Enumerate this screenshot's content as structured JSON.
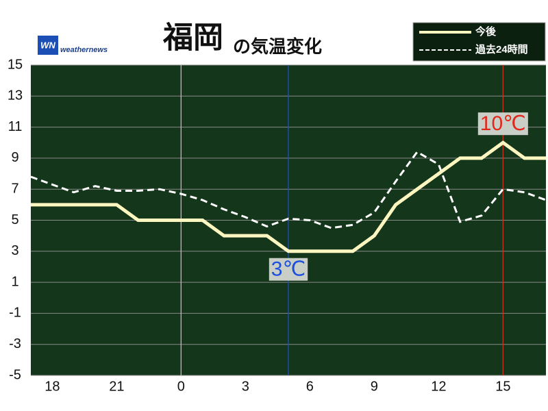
{
  "chart_data": {
    "type": "line",
    "title": "福岡",
    "subtitle": "の気温変化",
    "brand": "weathernews",
    "brand_logo": "WN",
    "x": [
      17,
      18,
      19,
      20,
      21,
      22,
      23,
      24,
      25,
      26,
      27,
      28,
      29,
      30,
      31,
      32,
      33,
      34,
      35,
      36,
      37,
      38,
      39,
      40,
      41
    ],
    "xlim": [
      17,
      41
    ],
    "xticks": [
      {
        "value": 18,
        "label": "18"
      },
      {
        "value": 21,
        "label": "21"
      },
      {
        "value": 24,
        "label": "0"
      },
      {
        "value": 27,
        "label": "3"
      },
      {
        "value": 30,
        "label": "6"
      },
      {
        "value": 33,
        "label": "9"
      },
      {
        "value": 36,
        "label": "12"
      },
      {
        "value": 39,
        "label": "15"
      }
    ],
    "ylim": [
      -5,
      15
    ],
    "yticks": [
      -5,
      -3,
      -1,
      1,
      3,
      5,
      7,
      9,
      11,
      13,
      15
    ],
    "grid": true,
    "background": "#14361b",
    "vlines": [
      {
        "x": 24,
        "color": "#bbbbbb"
      },
      {
        "x": 29,
        "color": "#1f4fbf"
      },
      {
        "x": 39,
        "color": "#c8331f"
      }
    ],
    "series": [
      {
        "name": "過去24時間",
        "color": "#ffffff",
        "style": "dashed",
        "values": [
          7.8,
          7.3,
          6.8,
          7.2,
          6.9,
          6.9,
          7.0,
          6.7,
          6.3,
          5.7,
          5.2,
          4.6,
          5.1,
          5.0,
          4.5,
          4.7,
          5.5,
          7.5,
          9.4,
          8.6,
          4.9,
          5.3,
          7.0,
          6.8,
          6.3
        ]
      },
      {
        "name": "今後",
        "color": "#fdf6c0",
        "style": "solid",
        "values": [
          6,
          6,
          6,
          6,
          6,
          5,
          5,
          5,
          5,
          4,
          4,
          4,
          3,
          3,
          3,
          3,
          4,
          6,
          7,
          8,
          9,
          9,
          10,
          9,
          9
        ]
      }
    ],
    "legend_order": [
      1,
      0
    ],
    "legend": "top-right",
    "annotations": [
      {
        "text": "3℃",
        "x": 29,
        "y": 3,
        "color": "#1c4fe0",
        "position": "below"
      },
      {
        "text": "10℃",
        "x": 39,
        "y": 10,
        "color": "#e0291d",
        "position": "above"
      }
    ]
  }
}
